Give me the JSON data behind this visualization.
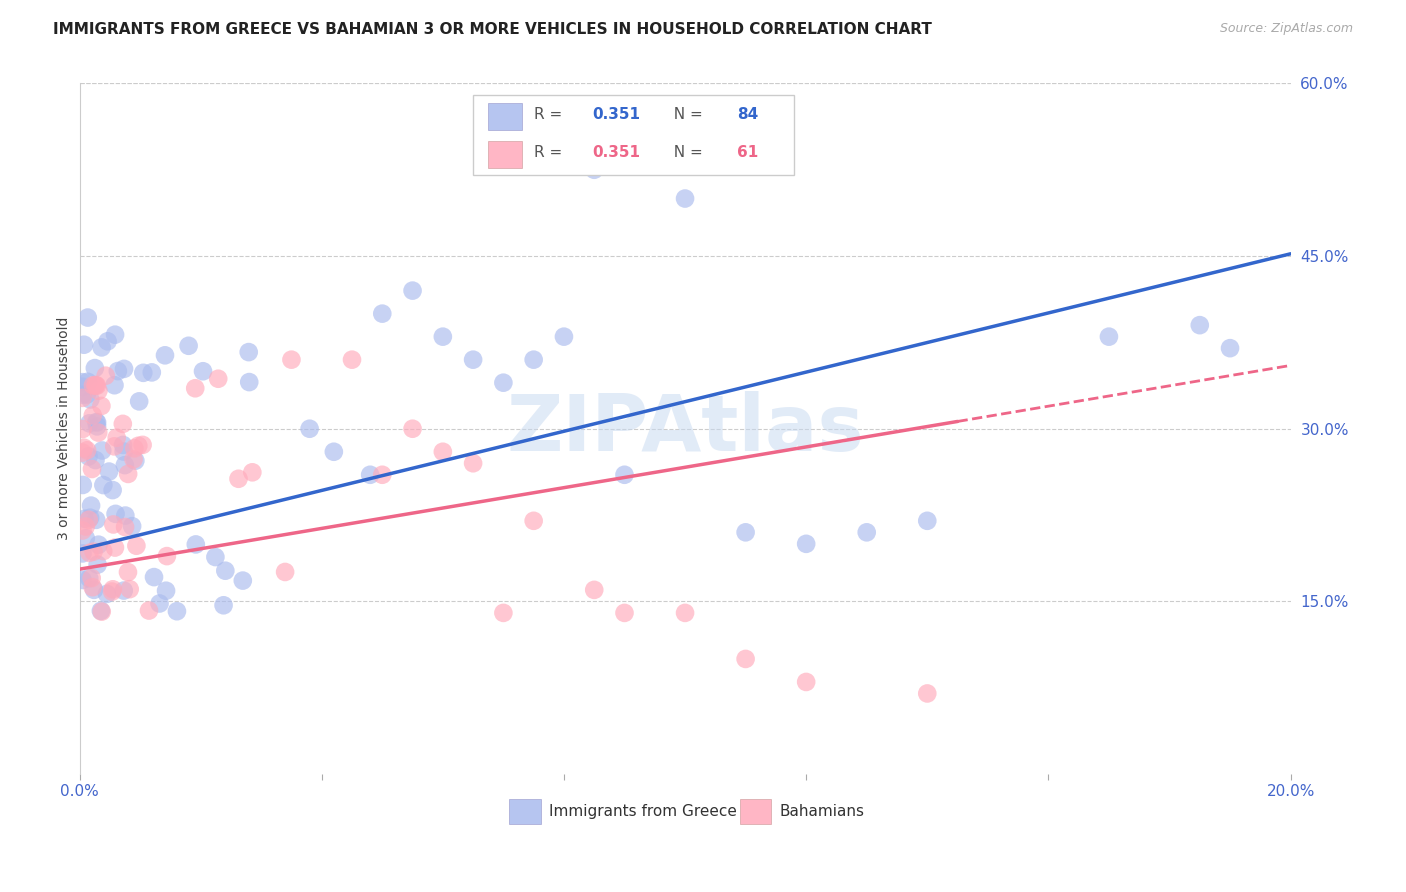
{
  "title": "IMMIGRANTS FROM GREECE VS BAHAMIAN 3 OR MORE VEHICLES IN HOUSEHOLD CORRELATION CHART",
  "source": "Source: ZipAtlas.com",
  "ylabel": "3 or more Vehicles in Household",
  "x_min": 0.0,
  "x_max": 0.2,
  "y_min": 0.0,
  "y_max": 0.6,
  "x_tick_positions": [
    0.0,
    0.04,
    0.08,
    0.12,
    0.16,
    0.2
  ],
  "x_tick_labels": [
    "0.0%",
    "",
    "",
    "",
    "",
    "20.0%"
  ],
  "y_ticks_right": [
    0.15,
    0.3,
    0.45,
    0.6
  ],
  "y_tick_labels_right": [
    "15.0%",
    "30.0%",
    "45.0%",
    "60.0%"
  ],
  "grid_color": "#cccccc",
  "background_color": "#ffffff",
  "watermark": "ZIPAtlas",
  "blue_color": "#aabbee",
  "pink_color": "#ffaabb",
  "blue_line_color": "#3366cc",
  "pink_line_color": "#ee6688",
  "title_color": "#222222",
  "axis_label_color": "#4466cc",
  "legend_label1": "Immigrants from Greece",
  "legend_label2": "Bahamians",
  "blue_r": "0.351",
  "blue_n": "84",
  "pink_r": "0.351",
  "pink_n": "61",
  "blue_line_x0": 0.0,
  "blue_line_y0": 0.195,
  "blue_line_x1": 0.2,
  "blue_line_y1": 0.452,
  "pink_line_x0": 0.0,
  "pink_line_y0": 0.178,
  "pink_line_x1": 0.2,
  "pink_line_y1": 0.355,
  "title_fontsize": 11,
  "source_fontsize": 9,
  "axis_tick_fontsize": 11,
  "ylabel_fontsize": 10,
  "scatter_size": 180
}
